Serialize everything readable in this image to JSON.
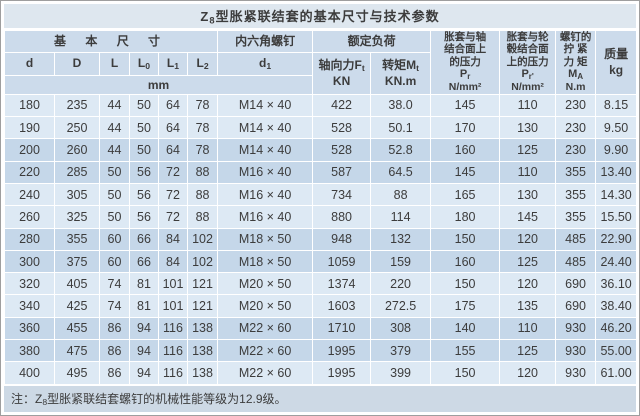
{
  "title": {
    "prefix": "Z",
    "sub": "8",
    "suffix": "型胀紧联结套的基本尺寸与技术参数"
  },
  "header": {
    "group_basic": "基 本 尺 寸",
    "group_screw": "内六角螺钉",
    "group_load": "额定负荷",
    "unit_mm": "mm",
    "cols_basic": [
      {
        "main": "d"
      },
      {
        "main": "D"
      },
      {
        "main": "L"
      },
      {
        "main": "L",
        "sub": "0"
      },
      {
        "main": "L",
        "sub": "1"
      },
      {
        "main": "L",
        "sub": "2"
      }
    ],
    "col_d1": {
      "main": "d",
      "sub": "1"
    },
    "col_axial": {
      "line1_main": "轴向力F",
      "line1_sub": "t",
      "line2": "KN"
    },
    "col_torque": {
      "line1_main": "转矩M",
      "line1_sub": "t",
      "line2": "KN.m"
    },
    "col_pr": {
      "lines": [
        "胀套与轴",
        "结合面上",
        "的压力"
      ],
      "sym_main": "P",
      "sym_sub": "r",
      "unit": "N/mm²"
    },
    "col_pr2": {
      "lines": [
        "胀套与轮",
        "毂结合面",
        "上的压力"
      ],
      "sym_main": "P",
      "sym_sub": "r'",
      "unit": "N/mm²"
    },
    "col_ma": {
      "lines": [
        "螺钉的",
        "拧 紧",
        "力 矩"
      ],
      "sym_main": "M",
      "sym_sub": "A",
      "unit": "N.m"
    },
    "col_mass": {
      "line1": "质量",
      "line2": "kg"
    }
  },
  "rows": [
    [
      "180",
      "235",
      "44",
      "50",
      "64",
      "78",
      "M14 × 40",
      "422",
      "38.0",
      "145",
      "110",
      "230",
      "8.15"
    ],
    [
      "190",
      "250",
      "44",
      "50",
      "64",
      "78",
      "M14 × 40",
      "528",
      "50.1",
      "170",
      "130",
      "230",
      "9.50"
    ],
    [
      "200",
      "260",
      "44",
      "50",
      "64",
      "78",
      "M14 × 40",
      "528",
      "52.8",
      "160",
      "125",
      "230",
      "9.90"
    ],
    [
      "220",
      "285",
      "50",
      "56",
      "72",
      "88",
      "M16 × 40",
      "587",
      "64.5",
      "145",
      "110",
      "355",
      "13.40"
    ],
    [
      "240",
      "305",
      "50",
      "56",
      "72",
      "88",
      "M16 × 40",
      "734",
      "88",
      "165",
      "130",
      "355",
      "14.30"
    ],
    [
      "260",
      "325",
      "50",
      "56",
      "72",
      "88",
      "M16 × 40",
      "880",
      "114",
      "180",
      "145",
      "355",
      "15.50"
    ],
    [
      "280",
      "355",
      "60",
      "66",
      "84",
      "102",
      "M18 × 50",
      "948",
      "132",
      "150",
      "120",
      "485",
      "22.90"
    ],
    [
      "300",
      "375",
      "60",
      "66",
      "84",
      "102",
      "M18 × 50",
      "1059",
      "159",
      "160",
      "125",
      "485",
      "24.40"
    ],
    [
      "320",
      "405",
      "74",
      "81",
      "101",
      "121",
      "M20 × 50",
      "1374",
      "220",
      "150",
      "120",
      "690",
      "36.10"
    ],
    [
      "340",
      "425",
      "74",
      "81",
      "101",
      "121",
      "M20 × 50",
      "1603",
      "272.5",
      "175",
      "135",
      "690",
      "38.40"
    ],
    [
      "360",
      "455",
      "86",
      "94",
      "116",
      "138",
      "M22 × 60",
      "1710",
      "308",
      "140",
      "110",
      "930",
      "46.20"
    ],
    [
      "380",
      "475",
      "86",
      "94",
      "116",
      "138",
      "M22 × 60",
      "1995",
      "379",
      "155",
      "125",
      "930",
      "55.00"
    ],
    [
      "400",
      "495",
      "86",
      "94",
      "116",
      "138",
      "M22 × 60",
      "1995",
      "399",
      "150",
      "120",
      "930",
      "61.00"
    ]
  ],
  "note": {
    "prefix": "注：Z",
    "sub": "8",
    "suffix": "型胀紧联结套螺钉的机械性能等级为12.9级。"
  },
  "colors": {
    "title_bg": "#dee7ef",
    "header_bg": "#ccdbeb",
    "row_light": "#dde9f4",
    "row_dark": "#c5d7e9",
    "note_bg": "#cdd9e5",
    "text": "#3c3c3c",
    "frame": "#9e9e9e"
  }
}
